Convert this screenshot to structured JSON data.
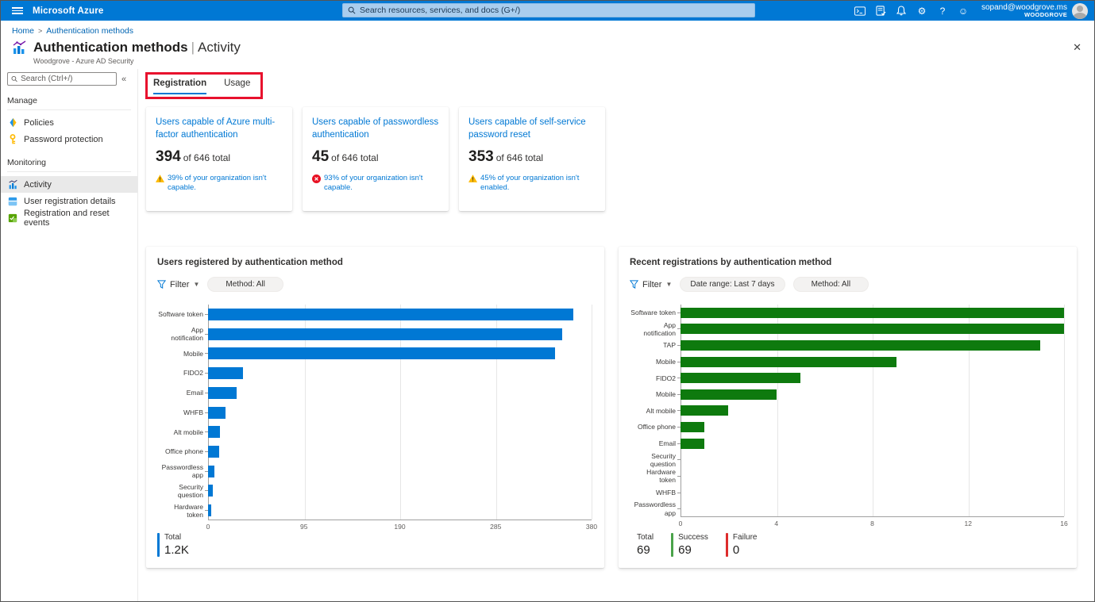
{
  "topbar": {
    "brand": "Microsoft Azure",
    "search_placeholder": "Search resources, services, and docs (G+/)",
    "help_glyph": "?",
    "gear_glyph": "⚙",
    "smiley_glyph": "☺",
    "account": {
      "email": "sopand@woodgrove.ms",
      "tenant": "WOODGROVE"
    }
  },
  "breadcrumb": {
    "home": "Home",
    "separator": ">",
    "current": "Authentication methods"
  },
  "header": {
    "title": "Authentication methods",
    "pipe": "|",
    "active_view": "Activity",
    "directory": "Woodgrove - Azure AD Security",
    "close_glyph": "✕"
  },
  "sidebar": {
    "search_placeholder": "Search (Ctrl+/)",
    "collapse_glyph": "«",
    "sections": [
      {
        "heading": "Manage",
        "items": [
          {
            "label": "Policies"
          },
          {
            "label": "Password protection"
          }
        ]
      },
      {
        "heading": "Monitoring",
        "items": [
          {
            "label": "Activity",
            "selected": true
          },
          {
            "label": "User registration details"
          },
          {
            "label": "Registration and reset events"
          }
        ]
      }
    ]
  },
  "tabs": [
    {
      "label": "Registration",
      "active": true
    },
    {
      "label": "Usage",
      "active": false
    }
  ],
  "annotation": {
    "highlight_color": "#e8112d"
  },
  "cards": [
    {
      "title": "Users capable of Azure multi-factor authentication",
      "value": "394",
      "suffix": "of 646 total",
      "note": "39% of your organization isn't capable.",
      "severity": "warning"
    },
    {
      "title": "Users capable of passwordless authentication",
      "value": "45",
      "suffix": "of 646 total",
      "note": "93% of your organization isn't capable.",
      "severity": "error"
    },
    {
      "title": "Users capable of self-service password reset",
      "value": "353",
      "suffix": "of 646 total",
      "note": "45% of your organization isn't enabled.",
      "severity": "warning"
    }
  ],
  "filter_label": "Filter",
  "chart_data": [
    {
      "type": "bar",
      "orientation": "horizontal",
      "title": "Users registered by authentication method",
      "pills": [
        "Method: All"
      ],
      "categories": [
        "Software token",
        "App notification",
        "Mobile",
        "FIDO2",
        "Email",
        "WHFB",
        "Alt mobile",
        "Office phone",
        "Passwordless app",
        "Security question",
        "Hardware token"
      ],
      "values": [
        362,
        351,
        344,
        35,
        28,
        17,
        12,
        11,
        6,
        5,
        3
      ],
      "xticks": [
        0,
        95,
        190,
        285,
        380
      ],
      "xlim": [
        0,
        380
      ],
      "grid": true,
      "bar_color": "#0078d4",
      "legend": [
        {
          "label": "Total",
          "value": "1.2K",
          "color": "#0078d4"
        }
      ]
    },
    {
      "type": "bar",
      "orientation": "horizontal",
      "title": "Recent registrations by authentication method",
      "pills": [
        "Date range: Last 7 days",
        "Method: All"
      ],
      "categories": [
        "Software token",
        "App notification",
        "TAP",
        "Mobile",
        "FIDO2",
        "Mobile",
        "Alt mobile",
        "Office phone",
        "Email",
        "Security question",
        "Hardware token",
        "WHFB",
        "Passwordless app"
      ],
      "values": [
        16,
        16,
        15,
        9,
        5,
        4,
        2,
        1,
        1,
        0,
        0,
        0,
        0
      ],
      "xticks": [
        0,
        4,
        8,
        12,
        16
      ],
      "xlim": [
        0,
        16
      ],
      "grid": true,
      "bar_color": "#0e7a0e",
      "legend": [
        {
          "label": "Total",
          "value": "69",
          "color": ""
        },
        {
          "label": "Success",
          "value": "69",
          "color": "#4aa34a"
        },
        {
          "label": "Failure",
          "value": "0",
          "color": "#dd2c2c"
        }
      ]
    }
  ],
  "colors": {
    "topbar": "#0078d4",
    "accent": "#0078d4",
    "chart_blue": "#0078d4",
    "chart_green": "#0e7a0e",
    "warning": "#ffb900",
    "error": "#e81123",
    "annotation_red": "#e8112d"
  }
}
